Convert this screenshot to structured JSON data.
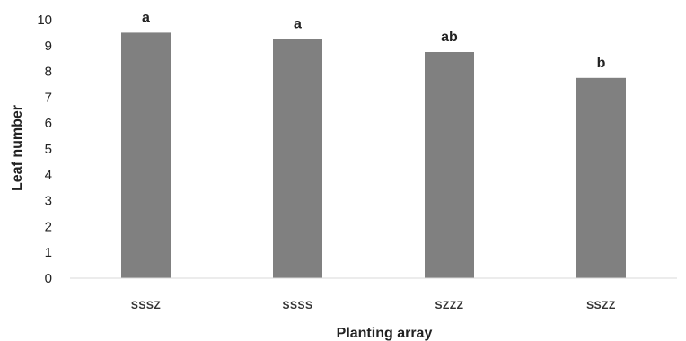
{
  "chart_data": {
    "type": "bar",
    "categories": [
      "SSSZ",
      "SSSS",
      "SZZZ",
      "SSZZ"
    ],
    "values": [
      9.5,
      9.25,
      8.75,
      7.75
    ],
    "data_labels": [
      "a",
      "a",
      "ab",
      "b"
    ],
    "xlabel": "Planting array",
    "ylabel": "Leaf number",
    "ylim": [
      0,
      10
    ],
    "yticks": [
      0,
      1,
      2,
      3,
      4,
      5,
      6,
      7,
      8,
      9,
      10
    ],
    "bar_color": "#808080",
    "grid": false,
    "legend": "none"
  }
}
